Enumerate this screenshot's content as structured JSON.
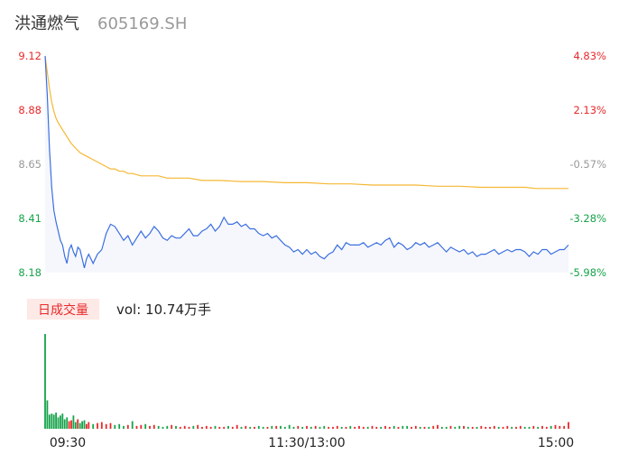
{
  "header": {
    "name": "洪通燃气",
    "code": "605169.SH"
  },
  "volume_panel": {
    "tab_label": "日成交量",
    "vol_text": "vol: 10.74万手"
  },
  "colors": {
    "up": "#e8292a",
    "down": "#16a34a",
    "neutral": "#999999",
    "price_line": "#3b6fe0",
    "avg_line": "#f5b833",
    "area_fill": "#f5f7fd"
  },
  "chart_data": {
    "type": "line",
    "title": "",
    "y_left_ticks": [
      "9.12",
      "8.88",
      "8.65",
      "8.41",
      "8.18"
    ],
    "y_right_ticks": [
      "4.83%",
      "2.13%",
      "-0.57%",
      "-3.28%",
      "-5.98%"
    ],
    "ylim": [
      8.18,
      9.12
    ],
    "x_ticks": [
      "09:30",
      "11:30/13:00",
      "15:00"
    ],
    "x_range_minutes": [
      0,
      240
    ],
    "series": [
      {
        "key": "price",
        "x": [
          0,
          1,
          2,
          3,
          4,
          5,
          6,
          7,
          8,
          9,
          10,
          11,
          12,
          13,
          14,
          15,
          16,
          17,
          18,
          19,
          20,
          22,
          24,
          26,
          28,
          30,
          32,
          34,
          36,
          38,
          40,
          42,
          44,
          46,
          48,
          50,
          52,
          54,
          56,
          58,
          60,
          62,
          64,
          66,
          68,
          70,
          72,
          74,
          76,
          78,
          80,
          82,
          84,
          86,
          88,
          90,
          92,
          94,
          96,
          98,
          100,
          102,
          104,
          106,
          108,
          110,
          112,
          114,
          116,
          118,
          120,
          122,
          124,
          126,
          128,
          130,
          132,
          134,
          136,
          138,
          140,
          142,
          144,
          146,
          148,
          150,
          152,
          154,
          156,
          158,
          160,
          162,
          164,
          166,
          168,
          170,
          172,
          174,
          176,
          178,
          180,
          182,
          184,
          186,
          188,
          190,
          192,
          194,
          196,
          198,
          200,
          202,
          204,
          206,
          208,
          210,
          212,
          214,
          216,
          218,
          220,
          222,
          224,
          226,
          228,
          230,
          232,
          234,
          236,
          238,
          240
        ],
        "values": [
          9.12,
          8.95,
          8.72,
          8.55,
          8.45,
          8.4,
          8.36,
          8.32,
          8.3,
          8.25,
          8.22,
          8.28,
          8.3,
          8.27,
          8.25,
          8.29,
          8.28,
          8.24,
          8.2,
          8.24,
          8.26,
          8.22,
          8.26,
          8.28,
          8.35,
          8.39,
          8.38,
          8.35,
          8.32,
          8.34,
          8.3,
          8.33,
          8.36,
          8.33,
          8.35,
          8.38,
          8.36,
          8.33,
          8.32,
          8.34,
          8.33,
          8.33,
          8.35,
          8.37,
          8.34,
          8.34,
          8.36,
          8.37,
          8.39,
          8.36,
          8.38,
          8.42,
          8.39,
          8.39,
          8.4,
          8.38,
          8.39,
          8.37,
          8.37,
          8.35,
          8.34,
          8.35,
          8.33,
          8.34,
          8.32,
          8.3,
          8.29,
          8.27,
          8.28,
          8.26,
          8.28,
          8.26,
          8.27,
          8.25,
          8.24,
          8.26,
          8.27,
          8.3,
          8.28,
          8.31,
          8.3,
          8.3,
          8.3,
          8.31,
          8.29,
          8.3,
          8.31,
          8.3,
          8.32,
          8.33,
          8.29,
          8.31,
          8.3,
          8.28,
          8.29,
          8.31,
          8.3,
          8.31,
          8.29,
          8.3,
          8.31,
          8.29,
          8.27,
          8.29,
          8.28,
          8.27,
          8.28,
          8.26,
          8.27,
          8.25,
          8.26,
          8.26,
          8.27,
          8.28,
          8.26,
          8.27,
          8.28,
          8.27,
          8.28,
          8.28,
          8.27,
          8.25,
          8.27,
          8.26,
          8.28,
          8.28,
          8.26,
          8.27,
          8.28,
          8.28,
          8.3
        ]
      },
      {
        "key": "average",
        "x": [
          0,
          1,
          2,
          3,
          4,
          5,
          6,
          8,
          10,
          12,
          14,
          16,
          18,
          20,
          22,
          24,
          26,
          28,
          30,
          32,
          34,
          36,
          38,
          40,
          44,
          48,
          52,
          56,
          60,
          66,
          72,
          80,
          90,
          100,
          110,
          120,
          130,
          140,
          150,
          160,
          170,
          180,
          190,
          200,
          210,
          220,
          225,
          232,
          240
        ],
        "values": [
          9.12,
          9.05,
          8.98,
          8.92,
          8.88,
          8.85,
          8.83,
          8.8,
          8.77,
          8.74,
          8.72,
          8.7,
          8.69,
          8.68,
          8.67,
          8.66,
          8.65,
          8.64,
          8.63,
          8.63,
          8.62,
          8.62,
          8.61,
          8.61,
          8.6,
          8.6,
          8.6,
          8.59,
          8.59,
          8.59,
          8.58,
          8.58,
          8.575,
          8.575,
          8.57,
          8.57,
          8.565,
          8.565,
          8.56,
          8.56,
          8.56,
          8.555,
          8.555,
          8.55,
          8.55,
          8.55,
          8.545,
          8.545,
          8.545
        ]
      }
    ],
    "volume": {
      "x": [
        0,
        1,
        2,
        3,
        4,
        5,
        6,
        7,
        8,
        9,
        10,
        11,
        12,
        13,
        14,
        15,
        16,
        17,
        18,
        19,
        20,
        22,
        24,
        26,
        28,
        30,
        32,
        34,
        36,
        38,
        40,
        42,
        44,
        46,
        48,
        50,
        52,
        54,
        56,
        58,
        60,
        62,
        64,
        66,
        68,
        70,
        72,
        74,
        76,
        78,
        80,
        82,
        84,
        86,
        88,
        90,
        92,
        94,
        96,
        98,
        100,
        102,
        104,
        106,
        108,
        110,
        112,
        114,
        116,
        118,
        120,
        122,
        124,
        126,
        128,
        130,
        132,
        134,
        136,
        138,
        140,
        142,
        144,
        146,
        148,
        150,
        152,
        154,
        156,
        158,
        160,
        162,
        164,
        166,
        168,
        170,
        172,
        174,
        176,
        178,
        180,
        182,
        184,
        186,
        188,
        190,
        192,
        194,
        196,
        198,
        200,
        202,
        204,
        206,
        208,
        210,
        212,
        214,
        216,
        218,
        220,
        222,
        224,
        226,
        228,
        230,
        232,
        234,
        236,
        238,
        240
      ],
      "values": [
        100,
        30,
        15,
        16,
        15,
        17,
        12,
        14,
        16,
        10,
        12,
        8,
        9,
        14,
        7,
        10,
        6,
        8,
        9,
        5,
        7,
        5,
        6,
        7,
        5,
        6,
        4,
        5,
        3,
        4,
        8,
        3,
        4,
        5,
        3,
        4,
        3,
        2,
        3,
        4,
        3,
        2,
        3,
        2,
        3,
        4,
        2,
        3,
        2,
        3,
        2,
        2,
        3,
        2,
        4,
        2,
        3,
        2,
        2,
        3,
        2,
        2,
        3,
        3,
        3,
        2,
        4,
        2,
        3,
        2,
        3,
        2,
        3,
        2,
        3,
        2,
        2,
        3,
        2,
        2,
        3,
        2,
        3,
        2,
        2,
        3,
        2,
        2,
        3,
        2,
        3,
        2,
        3,
        3,
        2,
        3,
        2,
        2,
        2,
        3,
        4,
        2,
        2,
        3,
        2,
        3,
        3,
        2,
        2,
        2,
        3,
        2,
        2,
        3,
        2,
        2,
        3,
        2,
        2,
        3,
        2,
        2,
        3,
        2,
        3,
        2,
        3,
        4,
        3,
        3,
        7
      ]
    }
  }
}
